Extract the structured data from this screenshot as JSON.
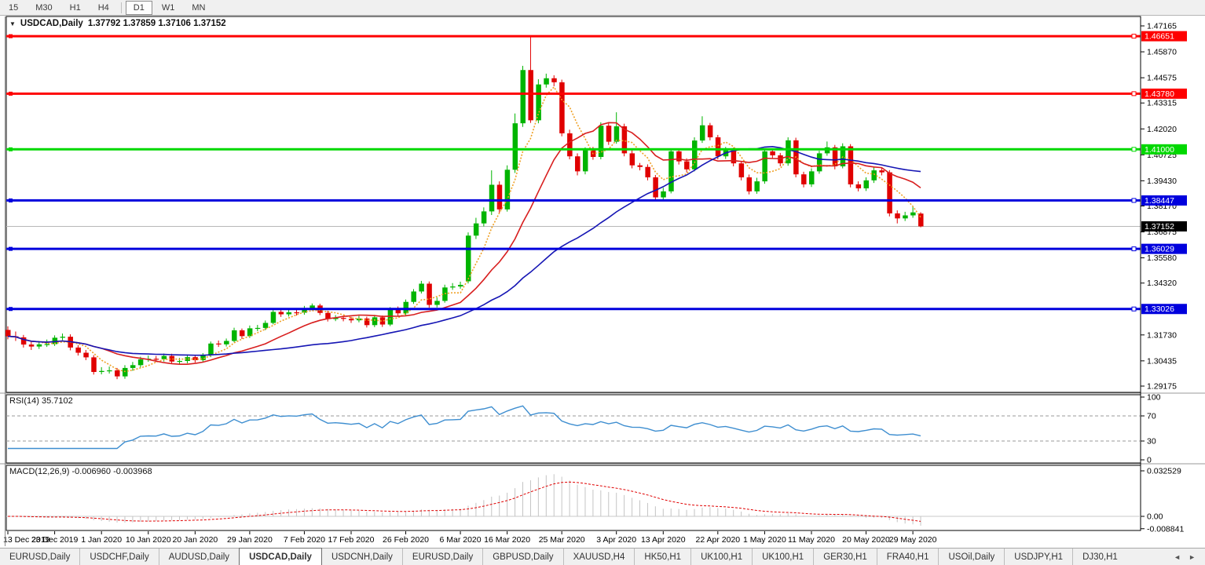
{
  "toolbar": {
    "timeframes": [
      {
        "label": "15",
        "active": false
      },
      {
        "label": "M30",
        "active": false
      },
      {
        "label": "H1",
        "active": false
      },
      {
        "label": "H4",
        "active": false
      },
      {
        "label": "D1",
        "active": true
      },
      {
        "label": "W1",
        "active": false
      },
      {
        "label": "MN",
        "active": false
      }
    ]
  },
  "chart_window": {
    "title": {
      "symbol": "USDCAD,Daily",
      "quote_line": "1.37792 1.37859 1.37106 1.37152"
    },
    "price_axis_ticks": [
      "1.47165",
      "1.45870",
      "1.44575",
      "1.43315",
      "1.42020",
      "1.40725",
      "1.39430",
      "1.38170",
      "1.36875",
      "1.35580",
      "1.34320",
      "1.31730",
      "1.30435",
      "1.29175"
    ],
    "current_price_label": "1.37152",
    "hlines": [
      {
        "label": "1.46651",
        "value": 1.46651,
        "color": "#fe0000"
      },
      {
        "label": "1.43780",
        "value": 1.4378,
        "color": "#fe0000"
      },
      {
        "label": "1.41000",
        "value": 1.41,
        "color": "#00d800"
      },
      {
        "label": "1.38447",
        "value": 1.38447,
        "color": "#0000dd"
      },
      {
        "label": "1.36029",
        "value": 1.36029,
        "color": "#0000dd"
      },
      {
        "label": "1.33026",
        "value": 1.33026,
        "color": "#0000dd"
      }
    ]
  },
  "chart_data": {
    "type": "candlestick",
    "symbol": "USDCAD",
    "timeframe": "Daily",
    "last_bar": {
      "open": "1.37792",
      "high": "1.37859",
      "low": "1.37106",
      "close": "1.37152"
    },
    "candles": [
      [
        1.3198,
        1.3216,
        1.3151,
        1.3166
      ],
      [
        1.3166,
        1.319,
        1.3143,
        1.3161
      ],
      [
        1.3161,
        1.3173,
        1.311,
        1.3125
      ],
      [
        1.3125,
        1.314,
        1.3098,
        1.3115
      ],
      [
        1.3115,
        1.3143,
        1.3103,
        1.3126
      ],
      [
        1.3126,
        1.315,
        1.3113,
        1.3127
      ],
      [
        1.3127,
        1.3171,
        1.3118,
        1.3159
      ],
      [
        1.3159,
        1.318,
        1.3147,
        1.3164
      ],
      [
        1.3164,
        1.3176,
        1.3096,
        1.311
      ],
      [
        1.311,
        1.3122,
        1.307,
        1.3084
      ],
      [
        1.3084,
        1.3098,
        1.3047,
        1.3061
      ],
      [
        1.3061,
        1.3072,
        1.2975,
        1.2988
      ],
      [
        1.2988,
        1.3012,
        1.2976,
        1.2993
      ],
      [
        1.2993,
        1.3015,
        1.298,
        1.2996
      ],
      [
        1.2996,
        1.3008,
        1.2952,
        1.2966
      ],
      [
        1.2966,
        1.3022,
        1.2954,
        1.3008
      ],
      [
        1.3008,
        1.3038,
        1.2994,
        1.3022
      ],
      [
        1.3022,
        1.3064,
        1.301,
        1.3051
      ],
      [
        1.3051,
        1.307,
        1.3039,
        1.3054
      ],
      [
        1.3054,
        1.3068,
        1.3037,
        1.3052
      ],
      [
        1.3052,
        1.308,
        1.304,
        1.3068
      ],
      [
        1.3068,
        1.3079,
        1.3028,
        1.304
      ],
      [
        1.304,
        1.3058,
        1.3027,
        1.3043
      ],
      [
        1.3043,
        1.3075,
        1.3031,
        1.3062
      ],
      [
        1.3062,
        1.3073,
        1.3035,
        1.3047
      ],
      [
        1.3047,
        1.3082,
        1.3037,
        1.3071
      ],
      [
        1.3071,
        1.314,
        1.3062,
        1.313
      ],
      [
        1.313,
        1.3145,
        1.3113,
        1.3126
      ],
      [
        1.3126,
        1.3155,
        1.3115,
        1.3143
      ],
      [
        1.3143,
        1.3209,
        1.3136,
        1.3196
      ],
      [
        1.3196,
        1.3205,
        1.3153,
        1.3167
      ],
      [
        1.3167,
        1.322,
        1.3158,
        1.3206
      ],
      [
        1.3206,
        1.3223,
        1.3192,
        1.3208
      ],
      [
        1.3208,
        1.3245,
        1.3197,
        1.3233
      ],
      [
        1.3233,
        1.33,
        1.3226,
        1.3288
      ],
      [
        1.3288,
        1.3302,
        1.3263,
        1.3276
      ],
      [
        1.3276,
        1.33,
        1.3265,
        1.3286
      ],
      [
        1.3286,
        1.3298,
        1.327,
        1.3284
      ],
      [
        1.3284,
        1.3318,
        1.3274,
        1.3305
      ],
      [
        1.3305,
        1.333,
        1.3296,
        1.332
      ],
      [
        1.332,
        1.3329,
        1.3272,
        1.3283
      ],
      [
        1.3283,
        1.3294,
        1.324,
        1.3252
      ],
      [
        1.3252,
        1.3272,
        1.3242,
        1.3258
      ],
      [
        1.3258,
        1.3269,
        1.3241,
        1.3253
      ],
      [
        1.3253,
        1.3263,
        1.3233,
        1.3246
      ],
      [
        1.3246,
        1.3268,
        1.3236,
        1.3255
      ],
      [
        1.3255,
        1.3264,
        1.321,
        1.3222
      ],
      [
        1.3222,
        1.3273,
        1.3212,
        1.3261
      ],
      [
        1.3261,
        1.327,
        1.3213,
        1.3225
      ],
      [
        1.3225,
        1.3312,
        1.3217,
        1.3301
      ],
      [
        1.3301,
        1.3315,
        1.3268,
        1.3281
      ],
      [
        1.3281,
        1.335,
        1.3272,
        1.3338
      ],
      [
        1.3338,
        1.3402,
        1.3328,
        1.339
      ],
      [
        1.339,
        1.3443,
        1.338,
        1.3429
      ],
      [
        1.3429,
        1.344,
        1.3309,
        1.3323
      ],
      [
        1.3323,
        1.336,
        1.331,
        1.3343
      ],
      [
        1.3343,
        1.3424,
        1.3334,
        1.341
      ],
      [
        1.341,
        1.3432,
        1.3398,
        1.3415
      ],
      [
        1.3415,
        1.3439,
        1.3404,
        1.3423
      ],
      [
        1.3441,
        1.3685,
        1.343,
        1.3669
      ],
      [
        1.3669,
        1.3758,
        1.3652,
        1.373
      ],
      [
        1.373,
        1.381,
        1.3715,
        1.379
      ],
      [
        1.379,
        1.3995,
        1.3772,
        1.3923
      ],
      [
        1.3923,
        1.394,
        1.378,
        1.38
      ],
      [
        1.38,
        1.402,
        1.3789,
        1.3998
      ],
      [
        1.3998,
        1.4279,
        1.3982,
        1.423
      ],
      [
        1.423,
        1.4517,
        1.4212,
        1.4496
      ],
      [
        1.4496,
        1.4668,
        1.4232,
        1.4245
      ],
      [
        1.4245,
        1.445,
        1.423,
        1.4424
      ],
      [
        1.4424,
        1.4478,
        1.4408,
        1.4455
      ],
      [
        1.4455,
        1.447,
        1.4415,
        1.4435
      ],
      [
        1.4435,
        1.4448,
        1.4165,
        1.418
      ],
      [
        1.418,
        1.4198,
        1.405,
        1.4065
      ],
      [
        1.4065,
        1.408,
        1.397,
        1.399
      ],
      [
        1.399,
        1.411,
        1.3975,
        1.4095
      ],
      [
        1.4095,
        1.4112,
        1.4048,
        1.4062
      ],
      [
        1.4062,
        1.4235,
        1.405,
        1.4218
      ],
      [
        1.4218,
        1.423,
        1.4122,
        1.4138
      ],
      [
        1.4138,
        1.4285,
        1.4128,
        1.4215
      ],
      [
        1.4215,
        1.4228,
        1.4065,
        1.408
      ],
      [
        1.408,
        1.4095,
        1.4005,
        1.402
      ],
      [
        1.402,
        1.4032,
        1.3995,
        1.4012
      ],
      [
        1.4012,
        1.4025,
        1.3945,
        1.396
      ],
      [
        1.396,
        1.3972,
        1.3846,
        1.386
      ],
      [
        1.386,
        1.3908,
        1.3844,
        1.389
      ],
      [
        1.389,
        1.4105,
        1.388,
        1.409
      ],
      [
        1.409,
        1.4102,
        1.4024,
        1.404
      ],
      [
        1.404,
        1.4055,
        1.3985,
        1.4
      ],
      [
        1.4,
        1.416,
        1.399,
        1.4144
      ],
      [
        1.4144,
        1.4265,
        1.4132,
        1.422
      ],
      [
        1.422,
        1.4232,
        1.4145,
        1.416
      ],
      [
        1.416,
        1.4172,
        1.405,
        1.4065
      ],
      [
        1.4065,
        1.4112,
        1.4052,
        1.4095
      ],
      [
        1.4095,
        1.4108,
        1.4015,
        1.403
      ],
      [
        1.403,
        1.4042,
        1.3945,
        1.396
      ],
      [
        1.396,
        1.3974,
        1.3875,
        1.389
      ],
      [
        1.389,
        1.3958,
        1.3878,
        1.394
      ],
      [
        1.394,
        1.4105,
        1.3928,
        1.409
      ],
      [
        1.409,
        1.4105,
        1.4053,
        1.407
      ],
      [
        1.407,
        1.4082,
        1.4015,
        1.403
      ],
      [
        1.403,
        1.416,
        1.4018,
        1.4145
      ],
      [
        1.4145,
        1.4158,
        1.396,
        1.3975
      ],
      [
        1.3975,
        1.3988,
        1.391,
        1.3925
      ],
      [
        1.3925,
        1.4005,
        1.3912,
        1.399
      ],
      [
        1.399,
        1.4093,
        1.3978,
        1.408
      ],
      [
        1.408,
        1.4139,
        1.4068,
        1.411
      ],
      [
        1.411,
        1.4122,
        1.4,
        1.4015
      ],
      [
        1.4015,
        1.413,
        1.4005,
        1.4115
      ],
      [
        1.4115,
        1.4126,
        1.391,
        1.3925
      ],
      [
        1.3925,
        1.394,
        1.389,
        1.3905
      ],
      [
        1.3905,
        1.396,
        1.3892,
        1.3945
      ],
      [
        1.3945,
        1.401,
        1.3932,
        1.3995
      ],
      [
        1.3995,
        1.4008,
        1.397,
        1.3985
      ],
      [
        1.3985,
        1.3996,
        1.3765,
        1.378
      ],
      [
        1.378,
        1.3795,
        1.373,
        1.3755
      ],
      [
        1.3755,
        1.3788,
        1.3742,
        1.377
      ],
      [
        1.377,
        1.3815,
        1.3758,
        1.3785
      ],
      [
        1.37792,
        1.37859,
        1.37106,
        1.37152
      ]
    ],
    "date_ticks": [
      {
        "label": "13 Dec 2019",
        "bar": 0
      },
      {
        "label": "23 Dec 2019",
        "bar": 6
      },
      {
        "label": "1 Jan 2020",
        "bar": 12
      },
      {
        "label": "10 Jan 2020",
        "bar": 18
      },
      {
        "label": "20 Jan 2020",
        "bar": 24
      },
      {
        "label": "29 Jan 2020",
        "bar": 31
      },
      {
        "label": "7 Feb 2020",
        "bar": 38
      },
      {
        "label": "17 Feb 2020",
        "bar": 44
      },
      {
        "label": "26 Feb 2020",
        "bar": 51
      },
      {
        "label": "6 Mar 2020",
        "bar": 58
      },
      {
        "label": "16 Mar 2020",
        "bar": 64
      },
      {
        "label": "25 Mar 2020",
        "bar": 71
      },
      {
        "label": "3 Apr 2020",
        "bar": 78
      },
      {
        "label": "13 Apr 2020",
        "bar": 84
      },
      {
        "label": "22 Apr 2020",
        "bar": 91
      },
      {
        "label": "1 May 2020",
        "bar": 97
      },
      {
        "label": "11 May 2020",
        "bar": 103
      },
      {
        "label": "20 May 2020",
        "bar": 110
      },
      {
        "label": "29 May 2020",
        "bar": 116
      }
    ],
    "moving_averages": [
      {
        "name": "ma-fast",
        "period": 5,
        "color": "#efa024",
        "style": "dotted"
      },
      {
        "name": "ma-mid",
        "period": 13,
        "color": "#d81e1e",
        "style": "solid"
      },
      {
        "name": "ma-slow",
        "period": 34,
        "color": "#1515b4",
        "style": "solid"
      }
    ],
    "indicators": {
      "rsi": {
        "label": "RSI(14) 35.7102",
        "period": 14,
        "current": "35.7102",
        "levels": [
          "100",
          "70",
          "30",
          "0"
        ],
        "color": "#3e8ed0"
      },
      "macd": {
        "label": "MACD(12,26,9) -0.006960 -0.003968",
        "fast": 12,
        "slow": 26,
        "signal": 9,
        "main_current": "-0.006960",
        "signal_current": "-0.003968",
        "axis_labels": [
          "0.032529",
          "0.00",
          "-0.008841"
        ],
        "hist_color": "#c4c4c4",
        "signal_color": "#e00000"
      }
    },
    "colors": {
      "bull": "#00b400",
      "bear": "#e00000",
      "background": "#ffffff",
      "current_price_line": "#b8b8b8",
      "current_price_label_bg": "#000000"
    }
  },
  "tabs": {
    "items": [
      {
        "label": "EURUSD,Daily",
        "active": false
      },
      {
        "label": "USDCHF,Daily",
        "active": false
      },
      {
        "label": "AUDUSD,Daily",
        "active": false
      },
      {
        "label": "USDCAD,Daily",
        "active": true
      },
      {
        "label": "USDCNH,Daily",
        "active": false
      },
      {
        "label": "EURUSD,Daily",
        "active": false
      },
      {
        "label": "GBPUSD,Daily",
        "active": false
      },
      {
        "label": "XAUUSD,H4",
        "active": false
      },
      {
        "label": "HK50,H1",
        "active": false
      },
      {
        "label": "UK100,H1",
        "active": false
      },
      {
        "label": "UK100,H1",
        "active": false
      },
      {
        "label": "GER30,H1",
        "active": false
      },
      {
        "label": "FRA40,H1",
        "active": false
      },
      {
        "label": "USOil,Daily",
        "active": false
      },
      {
        "label": "USDJPY,H1",
        "active": false
      },
      {
        "label": "DJ30,H1",
        "active": false
      }
    ],
    "nav_left": "◄",
    "nav_right": "►"
  }
}
